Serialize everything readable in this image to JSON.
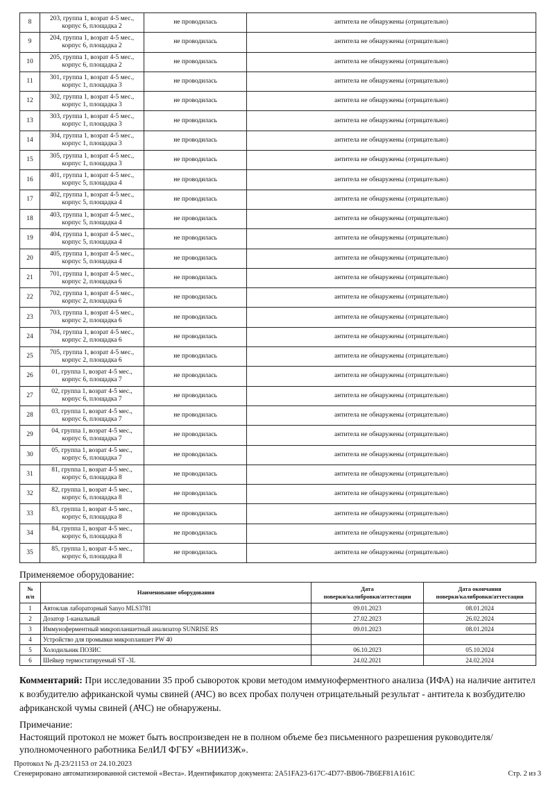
{
  "results": {
    "rows": [
      {
        "n": "8",
        "s1": "203, группа 1, возрат 4-5 мес.,",
        "s2": "корпус 6, площадка 2",
        "test": "не проводилась",
        "result": "антитела не обнаружены (отрицательно)"
      },
      {
        "n": "9",
        "s1": "204, группа 1, возрат 4-5 мес.,",
        "s2": "корпус 6, площадка 2",
        "test": "не проводилась",
        "result": "антитела не обнаружены (отрицательно)"
      },
      {
        "n": "10",
        "s1": "205, группа 1, возрат 4-5 мес.,",
        "s2": "корпус 6, площадка 2",
        "test": "не проводилась",
        "result": "антитела не обнаружены (отрицательно)"
      },
      {
        "n": "11",
        "s1": "301, группа 1, возрат 4-5 мес.,",
        "s2": "корпус 1, площадка 3",
        "test": "не проводилась",
        "result": "антитела не обнаружены (отрицательно)"
      },
      {
        "n": "12",
        "s1": "302, группа 1, возрат 4-5 мес.,",
        "s2": "корпус 1, площадка 3",
        "test": "не проводилась",
        "result": "антитела не обнаружены (отрицательно)"
      },
      {
        "n": "13",
        "s1": "303, группа 1, возрат 4-5 мес.,",
        "s2": "корпус 1, площадка 3",
        "test": "не проводилась",
        "result": "антитела не обнаружены (отрицательно)"
      },
      {
        "n": "14",
        "s1": "304, группа 1, возрат 4-5 мес.,",
        "s2": "корпус 1, площадка 3",
        "test": "не проводилась",
        "result": "антитела не обнаружены (отрицательно)"
      },
      {
        "n": "15",
        "s1": "305, группа 1, возрат 4-5 мес.,",
        "s2": "корпус 1, площадка 3",
        "test": "не проводилась",
        "result": "антитела не обнаружены (отрицательно)"
      },
      {
        "n": "16",
        "s1": "401, группа 1, возрат 4-5 мес.,",
        "s2": "корпус 5, площадка 4",
        "test": "не проводилась",
        "result": "антитела не обнаружены (отрицательно)"
      },
      {
        "n": "17",
        "s1": "402, группа 1, возрат 4-5 мес.,",
        "s2": "корпус 5, площадка 4",
        "test": "не проводилась",
        "result": "антитела не обнаружены (отрицательно)"
      },
      {
        "n": "18",
        "s1": "403, группа 1, возрат 4-5 мес.,",
        "s2": "корпус 5, площадка 4",
        "test": "не проводилась",
        "result": "антитела не обнаружены (отрицательно)"
      },
      {
        "n": "19",
        "s1": "404, группа 1, возрат 4-5 мес.,",
        "s2": "корпус 5, площадка 4",
        "test": "не проводилась",
        "result": "антитела не обнаружены (отрицательно)"
      },
      {
        "n": "20",
        "s1": "405, группа 1, возрат 4-5 мес.,",
        "s2": "корпус 5, площадка 4",
        "test": "не проводилась",
        "result": "антитела не обнаружены (отрицательно)"
      },
      {
        "n": "21",
        "s1": "701, группа 1, возрат 4-5 мес.,",
        "s2": "корпус 2, площадка 6",
        "test": "не проводилась",
        "result": "антитела не обнаружены (отрицательно)"
      },
      {
        "n": "22",
        "s1": "702, группа 1, возрат 4-5 мес.,",
        "s2": "корпус 2, площадка 6",
        "test": "не проводилась",
        "result": "антитела не обнаружены (отрицательно)"
      },
      {
        "n": "23",
        "s1": "703, группа 1, возрат 4-5 мес.,",
        "s2": "корпус 2, площадка 6",
        "test": "не проводилась",
        "result": "антитела не обнаружены (отрицательно)"
      },
      {
        "n": "24",
        "s1": "704, группа 1, возрат 4-5 мес.,",
        "s2": "корпус 2, площадка 6",
        "test": "не проводилась",
        "result": "антитела не обнаружены (отрицательно)"
      },
      {
        "n": "25",
        "s1": "705, группа 1, возрат 4-5 мес.,",
        "s2": "корпус 2, площадка 6",
        "test": "не проводилась",
        "result": "антитела не обнаружены (отрицательно)"
      },
      {
        "n": "26",
        "s1": "01, группа 1, возрат 4-5 мес.,",
        "s2": "корпус 6, площадка 7",
        "test": "не проводилась",
        "result": "антитела не обнаружены (отрицательно)"
      },
      {
        "n": "27",
        "s1": "02, группа 1, возрат 4-5 мес.,",
        "s2": "корпус 6, площадка 7",
        "test": "не проводилась",
        "result": "антитела не обнаружены (отрицательно)"
      },
      {
        "n": "28",
        "s1": "03, группа 1, возрат 4-5 мес.,",
        "s2": "корпус 6, площадка 7",
        "test": "не проводилась",
        "result": "антитела не обнаружены (отрицательно)"
      },
      {
        "n": "29",
        "s1": "04, группа 1, возрат 4-5 мес.,",
        "s2": "корпус 6, площадка 7",
        "test": "не проводилась",
        "result": "антитела не обнаружены (отрицательно)"
      },
      {
        "n": "30",
        "s1": "05, группа 1, возрат 4-5 мес.,",
        "s2": "корпус 6, площадка 7",
        "test": "не проводилась",
        "result": "антитела не обнаружены (отрицательно)"
      },
      {
        "n": "31",
        "s1": "81, группа 1, возрат 4-5 мес.,",
        "s2": "корпус 6, площадка 8",
        "test": "не проводилась",
        "result": "антитела не обнаружены (отрицательно)"
      },
      {
        "n": "32",
        "s1": "82, группа 1, возрат 4-5 мес.,",
        "s2": "корпус 6, площадка 8",
        "test": "не проводилась",
        "result": "антитела не обнаружены (отрицательно)"
      },
      {
        "n": "33",
        "s1": "83, группа 1, возрат 4-5 мес.,",
        "s2": "корпус 6, площадка 8",
        "test": "не проводилась",
        "result": "антитела не обнаружены (отрицательно)"
      },
      {
        "n": "34",
        "s1": "84, группа 1, возрат 4-5 мес.,",
        "s2": "корпус 6, площадка 8",
        "test": "не проводилась",
        "result": "антитела не обнаружены (отрицательно)"
      },
      {
        "n": "35",
        "s1": "85, группа 1, возрат 4-5 мес.,",
        "s2": "корпус 6, площадка 8",
        "test": "не проводилась",
        "result": "антитела не обнаружены (отрицательно)"
      }
    ]
  },
  "equipment": {
    "title": "Применяемое оборудование:",
    "headers": {
      "num1": "№",
      "num2": "п/п",
      "name": "Наименование оборудования",
      "date1": "Дата",
      "date2": "поверки/калибровки/аттестации",
      "end1": "Дата окончания",
      "end2": "поверки/калибровки/аттестации"
    },
    "rows": [
      {
        "n": "1",
        "name": "Автоклав лабораторный Sanyo MLS3781",
        "date": "09.01.2023",
        "end": "08.01.2024"
      },
      {
        "n": "2",
        "name": "Дозатор 1-канальный",
        "date": "27.02.2023",
        "end": "26.02.2024"
      },
      {
        "n": "3",
        "name": "Иммуноферментный микропланшетный анализатор SUNRISE RS",
        "date": "09.01.2023",
        "end": "08.01.2024"
      },
      {
        "n": "4",
        "name": "Устройство для промывки микропланшет PW 40",
        "date": "",
        "end": ""
      },
      {
        "n": "5",
        "name": "Холодильник ПОЗИС",
        "date": "06.10.2023",
        "end": "05.10.2024"
      },
      {
        "n": "6",
        "name": "Шейкер термостатируемый ST -3L",
        "date": "24.02.2021",
        "end": "24.02.2024"
      }
    ]
  },
  "comment": {
    "label": "Комментарий:",
    "text": " При исследовании 35 проб сывороток крови методом иммуноферментного анализа (ИФА) на наличие антител к возбудителю африканской чумы свиней (АЧС) во всех пробах получен отрицательный результат - антитела к возбудителю африканской чумы свиней (АЧС) не обнаружены."
  },
  "note": {
    "label": "Примечание:",
    "text": "Настоящий протокол не может быть воспроизведен не в полном объеме без письменного разрешения руководителя/уполномоченного работника БелИЛ ФГБУ «ВНИИЗЖ»."
  },
  "footer": {
    "protocol": "Протокол № Д-23/21153 от 24.10.2023",
    "generated": "Сгенерировано автоматизированной системой «Веста». Идентификатор документа: 2A51FA23-617C-4D77-BB06-7B6EF81A161C",
    "page": "Стр. 2 из 3"
  }
}
